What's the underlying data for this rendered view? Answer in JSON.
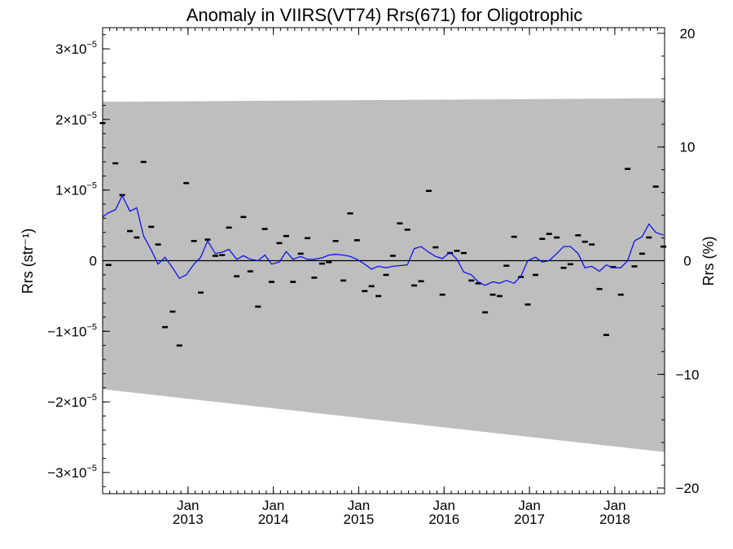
{
  "chart_data": {
    "type": "scatter",
    "title": "Anomaly in VIIRS(VT74) Rrs(671) for Oligotrophic",
    "ylabel_left": "Rrs (str⁻¹)",
    "ylabel_right": "Rrs (%)",
    "xlim": [
      2012.0,
      2018.583
    ],
    "ylim_left": [
      -3.3e-05,
      3.3e-05
    ],
    "ylim_right": [
      -20.5,
      20.5
    ],
    "x_ticks": [
      {
        "value": 2013.0,
        "month": "Jan",
        "year": "2013"
      },
      {
        "value": 2014.0,
        "month": "Jan",
        "year": "2014"
      },
      {
        "value": 2015.0,
        "month": "Jan",
        "year": "2015"
      },
      {
        "value": 2016.0,
        "month": "Jan",
        "year": "2016"
      },
      {
        "value": 2017.0,
        "month": "Jan",
        "year": "2017"
      },
      {
        "value": 2018.0,
        "month": "Jan",
        "year": "2018"
      }
    ],
    "y_ticks_left": [
      {
        "value": 3e-05,
        "mant": "3×10",
        "exp": "−5"
      },
      {
        "value": 2e-05,
        "mant": "2×10",
        "exp": "−5"
      },
      {
        "value": 1e-05,
        "mant": "1×10",
        "exp": "−5"
      },
      {
        "value": 0,
        "mant": "0",
        "exp": ""
      },
      {
        "value": -1e-05,
        "mant": "−1×10",
        "exp": "−5"
      },
      {
        "value": -2e-05,
        "mant": "−2×10",
        "exp": "−5"
      },
      {
        "value": -3e-05,
        "mant": "−3×10",
        "exp": "−5"
      }
    ],
    "y_ticks_right": [
      {
        "value": 20,
        "label": "20"
      },
      {
        "value": 10,
        "label": "10"
      },
      {
        "value": 0,
        "label": "0"
      },
      {
        "value": -10,
        "label": "−10"
      },
      {
        "value": -20,
        "label": "−20"
      }
    ],
    "band": {
      "upper": [
        [
          2012.0,
          2.25e-05
        ],
        [
          2018.583,
          2.3e-05
        ]
      ],
      "lower": [
        [
          2012.0,
          -1.82e-05
        ],
        [
          2018.583,
          -2.71e-05
        ]
      ],
      "color": "#bebebe"
    },
    "zero_line": true,
    "series": [
      {
        "kind": "markers",
        "color": "#000000",
        "x": [
          2012.0,
          2012.07,
          2012.15,
          2012.23,
          2012.32,
          2012.4,
          2012.48,
          2012.57,
          2012.65,
          2012.73,
          2012.82,
          2012.9,
          2012.98,
          2013.07,
          2013.15,
          2013.23,
          2013.32,
          2013.4,
          2013.48,
          2013.57,
          2013.65,
          2013.73,
          2013.82,
          2013.9,
          2013.98,
          2014.07,
          2014.15,
          2014.23,
          2014.32,
          2014.4,
          2014.48,
          2014.57,
          2014.65,
          2014.73,
          2014.82,
          2014.9,
          2014.98,
          2015.07,
          2015.15,
          2015.23,
          2015.32,
          2015.4,
          2015.48,
          2015.57,
          2015.65,
          2015.73,
          2015.82,
          2015.9,
          2015.98,
          2016.07,
          2016.15,
          2016.23,
          2016.32,
          2016.4,
          2016.48,
          2016.57,
          2016.65,
          2016.73,
          2016.82,
          2016.9,
          2016.98,
          2017.07,
          2017.15,
          2017.23,
          2017.32,
          2017.4,
          2017.48,
          2017.57,
          2017.65,
          2017.73,
          2017.82,
          2017.9,
          2017.98,
          2018.07,
          2018.15,
          2018.23,
          2018.32,
          2018.4,
          2018.48,
          2018.57
        ],
        "y": [
          1.95e-05,
          -6e-07,
          1.38e-05,
          9.3e-06,
          4.2e-06,
          3.3e-06,
          1.4e-05,
          4.8e-06,
          2.3e-06,
          -9.4e-06,
          -7.2e-06,
          -1.2e-05,
          1.1e-05,
          2.8e-06,
          -4.5e-06,
          3e-06,
          7e-07,
          8e-07,
          4.7e-06,
          -2.2e-06,
          6.2e-06,
          -1.5e-06,
          -6.5e-06,
          4.5e-06,
          -3e-06,
          2.5e-06,
          3.5e-06,
          -3e-06,
          1e-06,
          3.2e-06,
          -2.4e-06,
          -4e-07,
          -2e-07,
          2.8e-06,
          -2.8e-06,
          6.7e-06,
          2.9e-06,
          -4.3e-06,
          -3.6e-06,
          -5e-06,
          -2e-06,
          7e-07,
          5.3e-06,
          4.4e-06,
          -3.5e-06,
          -2.9e-06,
          9.9e-06,
          1.9e-06,
          -4.8e-06,
          1.1e-06,
          1.4e-06,
          1.1e-06,
          -2.8e-06,
          -3.2e-06,
          -7.3e-06,
          -4.8e-06,
          -5e-06,
          -7e-07,
          3.4e-06,
          -2.3e-06,
          -6.2e-06,
          -2e-06,
          3.1e-06,
          3.8e-06,
          3.3e-06,
          -1e-06,
          -5e-07,
          3.6e-06,
          2.7e-06,
          2.3e-06,
          -4e-06,
          -1.05e-05,
          -9e-07,
          -4.8e-06,
          1.3e-05,
          -8e-07,
          1e-06,
          3.3e-06,
          1.05e-05,
          2e-06
        ]
      },
      {
        "kind": "line",
        "color": "#1010ee",
        "x": [
          2012.0,
          2012.07,
          2012.15,
          2012.23,
          2012.32,
          2012.4,
          2012.48,
          2012.57,
          2012.65,
          2012.73,
          2012.82,
          2012.9,
          2012.98,
          2013.07,
          2013.15,
          2013.23,
          2013.32,
          2013.4,
          2013.48,
          2013.57,
          2013.65,
          2013.73,
          2013.82,
          2013.9,
          2013.98,
          2014.07,
          2014.15,
          2014.23,
          2014.32,
          2014.4,
          2014.48,
          2014.57,
          2014.65,
          2014.73,
          2014.82,
          2014.9,
          2014.98,
          2015.07,
          2015.15,
          2015.23,
          2015.32,
          2015.4,
          2015.48,
          2015.57,
          2015.65,
          2015.73,
          2015.82,
          2015.9,
          2015.98,
          2016.07,
          2016.15,
          2016.23,
          2016.32,
          2016.4,
          2016.48,
          2016.57,
          2016.65,
          2016.73,
          2016.82,
          2016.9,
          2016.98,
          2017.07,
          2017.15,
          2017.23,
          2017.32,
          2017.4,
          2017.48,
          2017.57,
          2017.65,
          2017.73,
          2017.82,
          2017.9,
          2017.98,
          2018.07,
          2018.15,
          2018.23,
          2018.32,
          2018.4,
          2018.48,
          2018.57
        ],
        "y": [
          6.2e-06,
          6.8e-06,
          7.2e-06,
          9.2e-06,
          7e-06,
          7.5e-06,
          3.5e-06,
          1.5e-06,
          -5e-07,
          5e-07,
          -1e-06,
          -2.5e-06,
          -2e-06,
          -5e-07,
          5e-07,
          2.8e-06,
          1e-06,
          1.2e-06,
          1.6e-06,
          2e-07,
          7e-07,
          2e-07,
          0.0,
          8e-07,
          -5e-07,
          -2e-07,
          1.3e-06,
          2e-07,
          6e-07,
          2e-07,
          2e-07,
          4e-07,
          8e-07,
          9e-07,
          8e-07,
          6e-07,
          2e-07,
          -5e-07,
          -1.2e-06,
          -8e-07,
          -1e-06,
          -8e-07,
          -7e-07,
          -6e-07,
          1.7e-06,
          2e-06,
          1.2e-06,
          6e-07,
          3e-07,
          1.2e-06,
          2e-07,
          -1.6e-06,
          -2e-06,
          -3e-06,
          -3.5e-06,
          -3e-06,
          -3.2e-06,
          -2.8e-06,
          -3.2e-06,
          -2.2e-06,
          0.0,
          5e-07,
          -2e-07,
          0.0,
          1e-06,
          2e-06,
          2e-06,
          1e-06,
          -1e-06,
          -8e-07,
          -1.5e-06,
          -6e-07,
          -1e-06,
          -1e-06,
          0.0,
          2.8e-06,
          3.4e-06,
          5.2e-06,
          4e-06,
          3.6e-06
        ]
      }
    ]
  }
}
